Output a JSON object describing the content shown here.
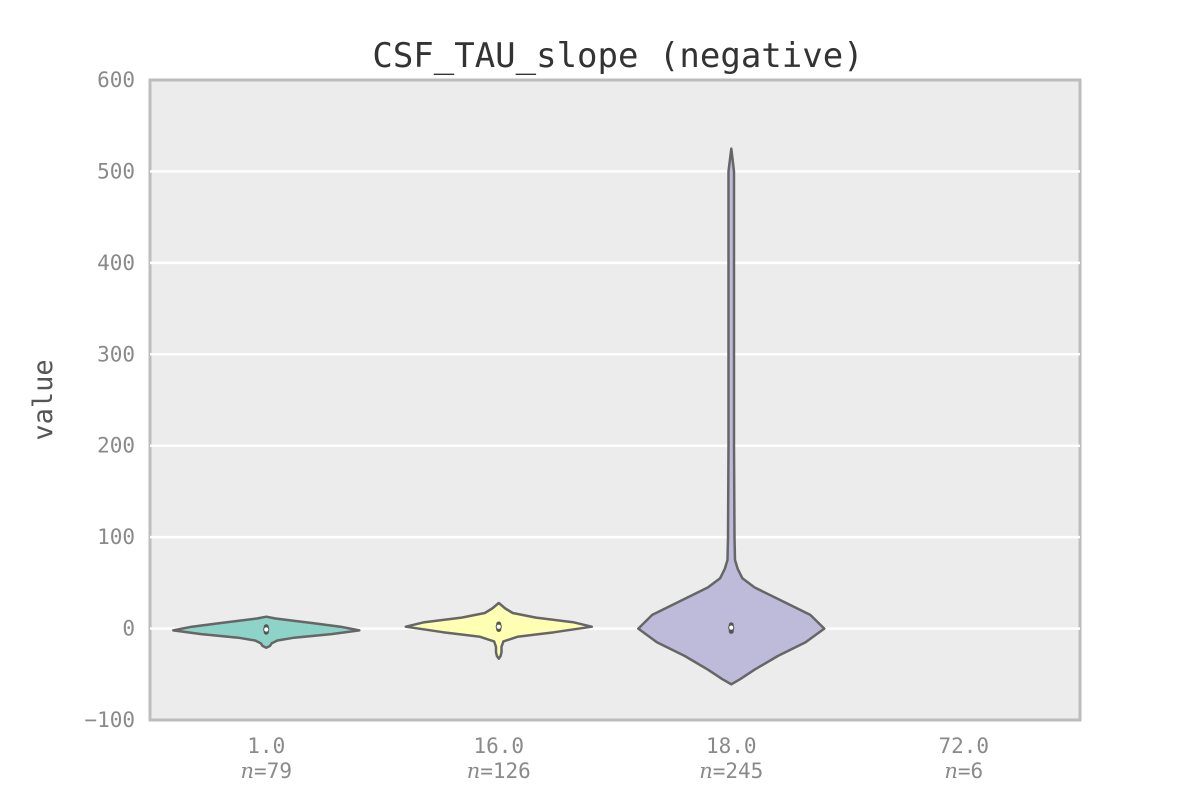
{
  "chart_data": {
    "type": "violin",
    "title": "CSF_TAU_slope (negative)",
    "xlabel": "",
    "ylabel": "value",
    "ylim": [
      -100,
      600
    ],
    "yticks": [
      -100,
      0,
      100,
      200,
      300,
      400,
      500,
      600
    ],
    "grid": true,
    "background": "#ececec",
    "categories": [
      "1.0",
      "16.0",
      "18.0",
      "72.0"
    ],
    "n_labels": [
      "79",
      "126",
      "245",
      "6"
    ],
    "n_prefix": "n",
    "violins": [
      {
        "category": "1.0",
        "color": "#8dd3c7",
        "median": -1,
        "q1": -4,
        "q3": 2,
        "profile": [
          [
            -21,
            0.0
          ],
          [
            -19,
            0.04
          ],
          [
            -16,
            0.06
          ],
          [
            -13,
            0.12
          ],
          [
            -10,
            0.3
          ],
          [
            -6,
            0.7
          ],
          [
            -2,
            1.0
          ],
          [
            2,
            0.8
          ],
          [
            6,
            0.5
          ],
          [
            9,
            0.25
          ],
          [
            11,
            0.1
          ],
          [
            13,
            0.0
          ]
        ]
      },
      {
        "category": "16.0",
        "color": "#ffffb3",
        "median": 2,
        "q1": -1,
        "q3": 5,
        "profile": [
          [
            -33,
            0.0
          ],
          [
            -30,
            0.02
          ],
          [
            -26,
            0.03
          ],
          [
            -20,
            0.03
          ],
          [
            -14,
            0.05
          ],
          [
            -9,
            0.2
          ],
          [
            -4,
            0.6
          ],
          [
            2,
            1.0
          ],
          [
            7,
            0.8
          ],
          [
            12,
            0.4
          ],
          [
            17,
            0.15
          ],
          [
            22,
            0.07
          ],
          [
            28,
            0.0
          ]
        ]
      },
      {
        "category": "18.0",
        "color": "#bebada",
        "median": 1,
        "q1": -3,
        "q3": 4,
        "profile": [
          [
            -61,
            0.0
          ],
          [
            -55,
            0.1
          ],
          [
            -45,
            0.25
          ],
          [
            -30,
            0.5
          ],
          [
            -15,
            0.8
          ],
          [
            0,
            1.0
          ],
          [
            15,
            0.85
          ],
          [
            30,
            0.55
          ],
          [
            45,
            0.25
          ],
          [
            55,
            0.12
          ],
          [
            65,
            0.07
          ],
          [
            75,
            0.04
          ],
          [
            100,
            0.035
          ],
          [
            200,
            0.03
          ],
          [
            400,
            0.03
          ],
          [
            500,
            0.03
          ],
          [
            525,
            0.0
          ]
        ]
      },
      {
        "category": "72.0",
        "color": "#fb8072",
        "median": null,
        "profile": []
      }
    ]
  }
}
